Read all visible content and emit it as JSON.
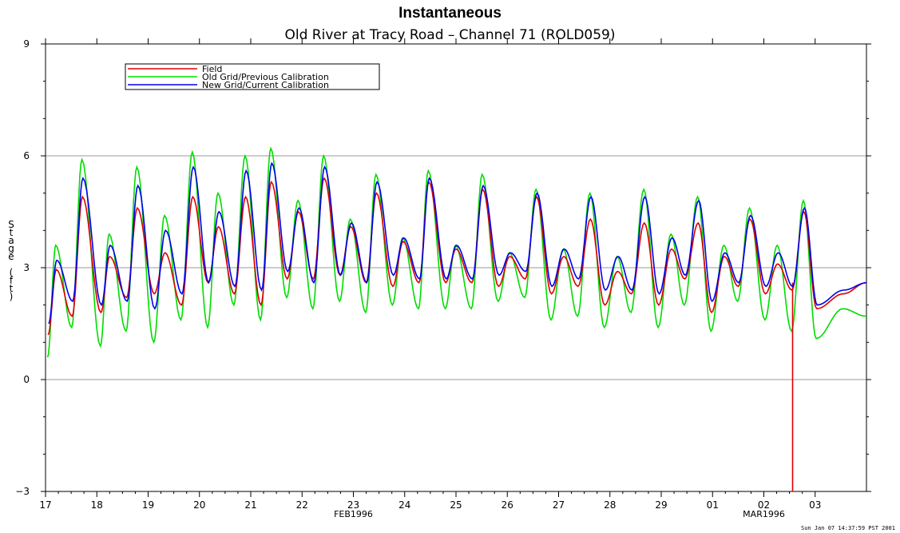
{
  "chart_data": {
    "type": "line",
    "title": "Instantaneous",
    "subtitle": "Old River at Tracy Road – Channel 71 (ROLD059)",
    "ylabel": "Stage (ft)",
    "ylim": [
      -3,
      9
    ],
    "yticks": [
      -3,
      0,
      3,
      6,
      9
    ],
    "xlim": [
      0,
      16
    ],
    "x_units": "days since 17 FEB 1996",
    "xtick_labels": [
      "17",
      "18",
      "19",
      "20",
      "21",
      "22",
      "23",
      "24",
      "25",
      "26",
      "27",
      "28",
      "29",
      "01",
      "02",
      "03"
    ],
    "month_labels": [
      {
        "text": "FEB1996",
        "at_tick": "23"
      },
      {
        "text": "MAR1996",
        "at_tick": "02"
      }
    ],
    "grid": "horizontal",
    "legend_position": "top-left",
    "footnote": "Sun Jan 07 14:37:59 PST 2001",
    "series": [
      {
        "name": "Field",
        "color": "#e00000",
        "mean": 3.05,
        "amp_scale": 0.78,
        "phase": 0.0,
        "dropout": {
          "x": 14.56,
          "to_y": -3
        }
      },
      {
        "name": "Old Grid/Previous Calibration",
        "color": "#00dd00",
        "mean": 2.9,
        "amp_scale": 1.3,
        "phase": -0.01
      },
      {
        "name": "New Grid/Current Calibration",
        "color": "#0000ee",
        "mean": 3.15,
        "amp_scale": 0.8,
        "phase": 0.01
      }
    ],
    "tide_peaks": [
      {
        "x": 0.21,
        "field": 2.95,
        "old": 3.6,
        "new": 3.2
      },
      {
        "x": 0.72,
        "field": 4.9,
        "old": 5.9,
        "new": 5.4
      },
      {
        "x": 1.25,
        "field": 3.3,
        "old": 3.9,
        "new": 3.6
      },
      {
        "x": 1.79,
        "field": 4.6,
        "old": 5.7,
        "new": 5.2
      },
      {
        "x": 2.33,
        "field": 3.4,
        "old": 4.4,
        "new": 4.0
      },
      {
        "x": 2.87,
        "field": 4.9,
        "old": 6.1,
        "new": 5.7
      },
      {
        "x": 3.37,
        "field": 4.1,
        "old": 5.0,
        "new": 4.5
      },
      {
        "x": 3.9,
        "field": 4.9,
        "old": 6.0,
        "new": 5.6
      },
      {
        "x": 4.4,
        "field": 5.3,
        "old": 6.2,
        "new": 5.8
      },
      {
        "x": 4.93,
        "field": 4.5,
        "old": 4.8,
        "new": 4.6
      },
      {
        "x": 5.43,
        "field": 5.4,
        "old": 6.0,
        "new": 5.7
      },
      {
        "x": 5.95,
        "field": 4.1,
        "old": 4.3,
        "new": 4.2
      },
      {
        "x": 6.45,
        "field": 5.0,
        "old": 5.5,
        "new": 5.3
      },
      {
        "x": 6.97,
        "field": 3.7,
        "old": 3.8,
        "new": 3.8
      },
      {
        "x": 7.47,
        "field": 5.3,
        "old": 5.6,
        "new": 5.4
      },
      {
        "x": 8.0,
        "field": 3.5,
        "old": 3.6,
        "new": 3.6
      },
      {
        "x": 8.52,
        "field": 5.1,
        "old": 5.5,
        "new": 5.2
      },
      {
        "x": 9.05,
        "field": 3.3,
        "old": 3.4,
        "new": 3.4
      },
      {
        "x": 9.57,
        "field": 4.9,
        "old": 5.1,
        "new": 5.0
      },
      {
        "x": 10.1,
        "field": 3.3,
        "old": 3.5,
        "new": 3.5
      },
      {
        "x": 10.62,
        "field": 4.3,
        "old": 5.0,
        "new": 4.9
      },
      {
        "x": 11.15,
        "field": 2.9,
        "old": 3.3,
        "new": 3.3
      },
      {
        "x": 11.67,
        "field": 4.2,
        "old": 5.1,
        "new": 4.9
      },
      {
        "x": 12.2,
        "field": 3.5,
        "old": 3.9,
        "new": 3.8
      },
      {
        "x": 12.72,
        "field": 4.2,
        "old": 4.9,
        "new": 4.8
      },
      {
        "x": 13.23,
        "field": 3.3,
        "old": 3.6,
        "new": 3.4
      },
      {
        "x": 13.73,
        "field": 4.3,
        "old": 4.6,
        "new": 4.4
      },
      {
        "x": 14.27,
        "field": 3.1,
        "old": 3.6,
        "new": 3.4
      },
      {
        "x": 14.78,
        "field": 4.5,
        "old": 4.8,
        "new": 4.6
      }
    ],
    "tide_troughs": [
      {
        "x": 0.05,
        "field": 1.2,
        "old": 0.6,
        "new": 1.5
      },
      {
        "x": 0.52,
        "field": 1.7,
        "old": 1.4,
        "new": 2.1
      },
      {
        "x": 1.08,
        "field": 1.8,
        "old": 0.9,
        "new": 2.0
      },
      {
        "x": 1.58,
        "field": 2.2,
        "old": 1.3,
        "new": 2.1
      },
      {
        "x": 2.12,
        "field": 2.3,
        "old": 1.0,
        "new": 1.9
      },
      {
        "x": 2.65,
        "field": 2.0,
        "old": 1.6,
        "new": 2.3
      },
      {
        "x": 3.17,
        "field": 2.6,
        "old": 1.4,
        "new": 2.6
      },
      {
        "x": 3.68,
        "field": 2.3,
        "old": 2.0,
        "new": 2.5
      },
      {
        "x": 4.2,
        "field": 2.0,
        "old": 1.6,
        "new": 2.4
      },
      {
        "x": 4.71,
        "field": 2.7,
        "old": 2.2,
        "new": 2.9
      },
      {
        "x": 5.22,
        "field": 2.7,
        "old": 1.9,
        "new": 2.6
      },
      {
        "x": 5.74,
        "field": 2.8,
        "old": 2.1,
        "new": 2.8
      },
      {
        "x": 6.25,
        "field": 2.6,
        "old": 1.8,
        "new": 2.6
      },
      {
        "x": 6.77,
        "field": 2.5,
        "old": 2.0,
        "new": 2.8
      },
      {
        "x": 7.28,
        "field": 2.6,
        "old": 1.9,
        "new": 2.7
      },
      {
        "x": 7.8,
        "field": 2.6,
        "old": 1.9,
        "new": 2.7
      },
      {
        "x": 8.31,
        "field": 2.6,
        "old": 1.9,
        "new": 2.7
      },
      {
        "x": 8.83,
        "field": 2.5,
        "old": 2.1,
        "new": 2.8
      },
      {
        "x": 9.35,
        "field": 2.7,
        "old": 2.2,
        "new": 2.9
      },
      {
        "x": 9.86,
        "field": 2.3,
        "old": 1.6,
        "new": 2.5
      },
      {
        "x": 10.38,
        "field": 2.5,
        "old": 1.7,
        "new": 2.7
      },
      {
        "x": 10.9,
        "field": 2.0,
        "old": 1.4,
        "new": 2.4
      },
      {
        "x": 11.42,
        "field": 2.3,
        "old": 1.8,
        "new": 2.4
      },
      {
        "x": 11.95,
        "field": 2.0,
        "old": 1.4,
        "new": 2.3
      },
      {
        "x": 12.46,
        "field": 2.7,
        "old": 2.0,
        "new": 2.8
      },
      {
        "x": 12.98,
        "field": 1.8,
        "old": 1.3,
        "new": 2.1
      },
      {
        "x": 13.5,
        "field": 2.5,
        "old": 2.1,
        "new": 2.6
      },
      {
        "x": 14.03,
        "field": 2.3,
        "old": 1.6,
        "new": 2.5
      },
      {
        "x": 14.55,
        "field": 2.4,
        "old": 1.3,
        "new": 2.5
      },
      {
        "x": 15.03,
        "field": 1.9,
        "old": 1.1,
        "new": 2.0
      },
      {
        "x": 15.55,
        "field": 2.3,
        "old": 1.9,
        "new": 2.4
      },
      {
        "x": 16.0,
        "field": 2.6,
        "old": 1.7,
        "new": 2.6
      }
    ]
  }
}
